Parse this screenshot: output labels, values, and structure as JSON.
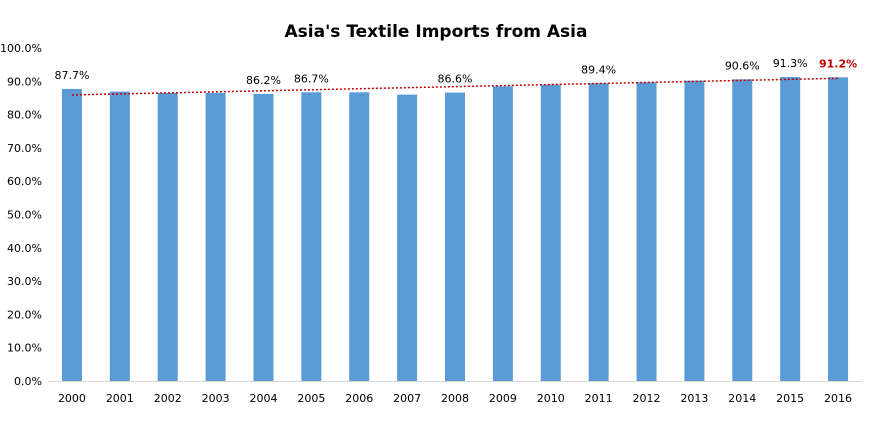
{
  "chart_data": {
    "type": "bar",
    "title": "Asia's Textile Imports from Asia",
    "xlabel": "",
    "ylabel": "",
    "categories": [
      "2000",
      "2001",
      "2002",
      "2003",
      "2004",
      "2005",
      "2006",
      "2007",
      "2008",
      "2009",
      "2010",
      "2011",
      "2012",
      "2013",
      "2014",
      "2015",
      "2016"
    ],
    "values": [
      87.7,
      86.9,
      86.5,
      86.5,
      86.2,
      86.7,
      86.7,
      86.0,
      86.6,
      88.5,
      89.0,
      89.4,
      89.7,
      90.2,
      90.6,
      91.3,
      91.2
    ],
    "ylim": [
      0,
      100
    ],
    "y_ticks": [
      "0.0%",
      "10.0%",
      "20.0%",
      "30.0%",
      "40.0%",
      "50.0%",
      "60.0%",
      "70.0%",
      "80.0%",
      "90.0%",
      "100.0%"
    ],
    "data_labels": [
      {
        "category": "2000",
        "text": "87.7%"
      },
      {
        "category": "2004",
        "text": "86.2%"
      },
      {
        "category": "2005",
        "text": "86.7%"
      },
      {
        "category": "2008",
        "text": "86.6%"
      },
      {
        "category": "2011",
        "text": "89.4%"
      },
      {
        "category": "2014",
        "text": "90.6%"
      },
      {
        "category": "2015",
        "text": "91.3%"
      },
      {
        "category": "2016",
        "text": "91.2%",
        "highlight": true
      }
    ],
    "trendline": {
      "type": "linear",
      "style": "dotted",
      "start_value": 85.9,
      "end_value": 90.9
    },
    "grid": false,
    "legend": "none",
    "colors": {
      "bar": "#5b9bd5",
      "trendline": "#c00000",
      "highlight_label": "#c00000",
      "axis": "#d9d9d9"
    }
  }
}
